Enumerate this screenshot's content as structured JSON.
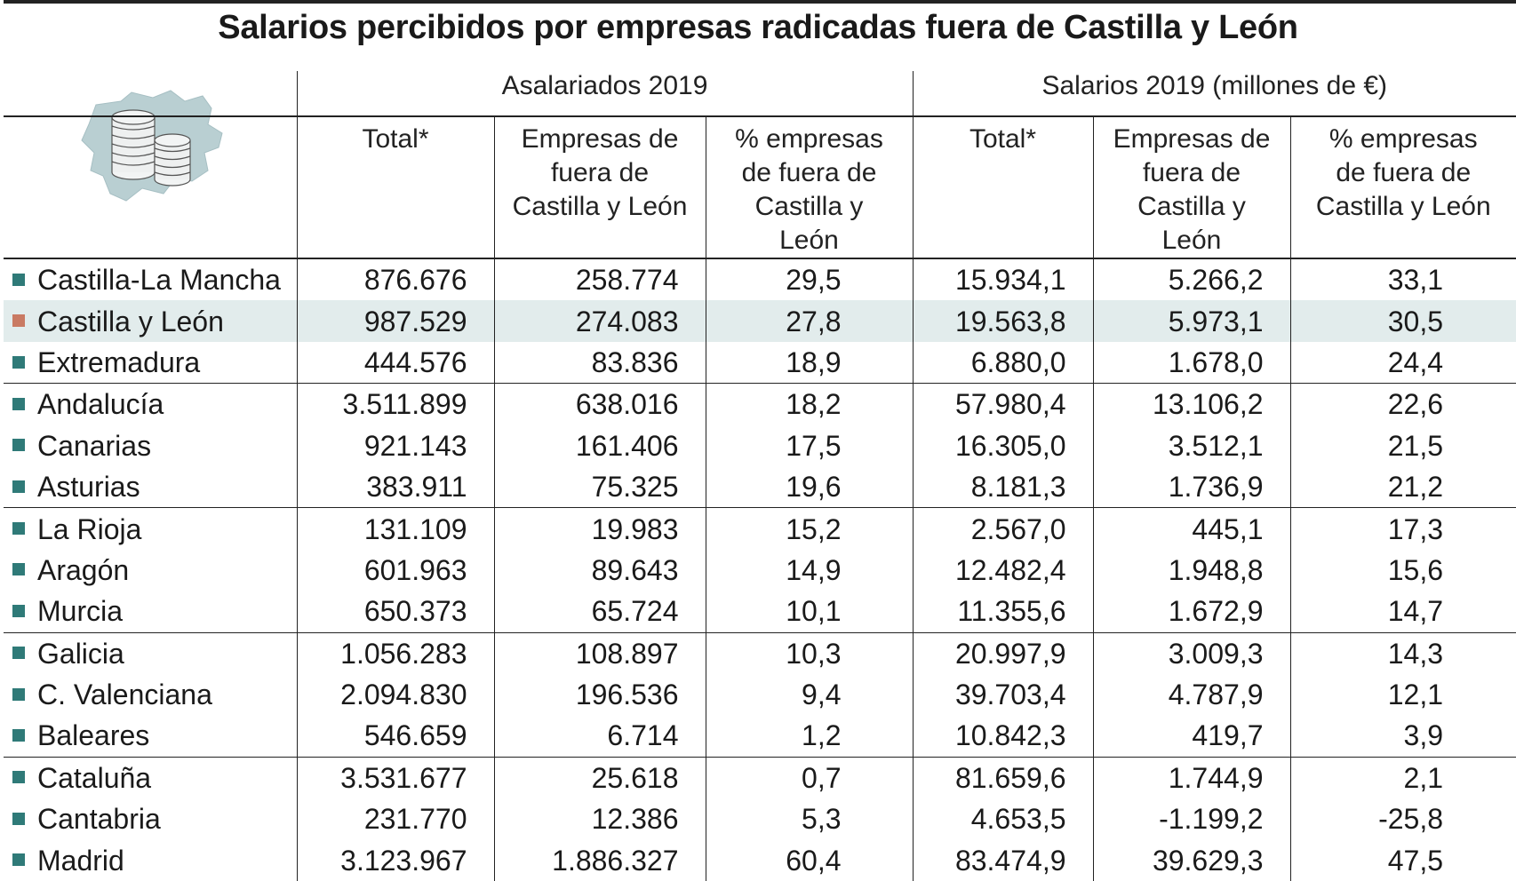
{
  "title": "Salarios percibidos por empresas radicadas fuera de Castilla y León",
  "headers": {
    "group1": "Asalariados 2019",
    "group2": "Salarios 2019 (millones de €)",
    "total": "Total*",
    "empresas_fuera": "Empresas de fuera de Castilla y León",
    "pct_fuera": "% empresas de fuera de Castilla y León"
  },
  "colors": {
    "marker": "#2f7a78",
    "marker_highlight": "#c97a63",
    "highlight_row": "#e2ecec",
    "map": "#b9cfd2"
  },
  "chart_data": {
    "type": "table",
    "title": "Salarios percibidos por empresas radicadas fuera de Castilla y León",
    "columns": [
      "",
      "Total*",
      "Empresas de fuera de Castilla y León",
      "% empresas de fuera de Castilla y León",
      "Total*",
      "Empresas de fuera de Castilla y León",
      "% empresas de fuera de Castilla y León"
    ],
    "rows": [
      {
        "region": "Castilla-La Mancha",
        "asal_total": "876.676",
        "asal_fuera": "258.774",
        "asal_pct": "29,5",
        "sal_total": "15.934,1",
        "sal_fuera": "5.266,2",
        "sal_pct": "33,1"
      },
      {
        "region": "Castilla y León",
        "asal_total": "987.529",
        "asal_fuera": "274.083",
        "asal_pct": "27,8",
        "sal_total": "19.563,8",
        "sal_fuera": "5.973,1",
        "sal_pct": "30,5",
        "highlight": true
      },
      {
        "region": "Extremadura",
        "asal_total": "444.576",
        "asal_fuera": "83.836",
        "asal_pct": "18,9",
        "sal_total": "6.880,0",
        "sal_fuera": "1.678,0",
        "sal_pct": "24,4",
        "sep": true
      },
      {
        "region": "Andalucía",
        "asal_total": "3.511.899",
        "asal_fuera": "638.016",
        "asal_pct": "18,2",
        "sal_total": "57.980,4",
        "sal_fuera": "13.106,2",
        "sal_pct": "22,6"
      },
      {
        "region": "Canarias",
        "asal_total": "921.143",
        "asal_fuera": "161.406",
        "asal_pct": "17,5",
        "sal_total": "16.305,0",
        "sal_fuera": "3.512,1",
        "sal_pct": "21,5"
      },
      {
        "region": "Asturias",
        "asal_total": "383.911",
        "asal_fuera": "75.325",
        "asal_pct": "19,6",
        "sal_total": "8.181,3",
        "sal_fuera": "1.736,9",
        "sal_pct": "21,2",
        "sep": true
      },
      {
        "region": "La Rioja",
        "asal_total": "131.109",
        "asal_fuera": "19.983",
        "asal_pct": "15,2",
        "sal_total": "2.567,0",
        "sal_fuera": "445,1",
        "sal_pct": "17,3"
      },
      {
        "region": "Aragón",
        "asal_total": "601.963",
        "asal_fuera": "89.643",
        "asal_pct": "14,9",
        "sal_total": "12.482,4",
        "sal_fuera": "1.948,8",
        "sal_pct": "15,6"
      },
      {
        "region": "Murcia",
        "asal_total": "650.373",
        "asal_fuera": "65.724",
        "asal_pct": "10,1",
        "sal_total": "11.355,6",
        "sal_fuera": "1.672,9",
        "sal_pct": "14,7",
        "sep": true
      },
      {
        "region": "Galicia",
        "asal_total": "1.056.283",
        "asal_fuera": "108.897",
        "asal_pct": "10,3",
        "sal_total": "20.997,9",
        "sal_fuera": "3.009,3",
        "sal_pct": "14,3"
      },
      {
        "region": "C. Valenciana",
        "asal_total": "2.094.830",
        "asal_fuera": "196.536",
        "asal_pct": "9,4",
        "sal_total": "39.703,4",
        "sal_fuera": "4.787,9",
        "sal_pct": "12,1"
      },
      {
        "region": "Baleares",
        "asal_total": "546.659",
        "asal_fuera": "6.714",
        "asal_pct": "1,2",
        "sal_total": "10.842,3",
        "sal_fuera": "419,7",
        "sal_pct": "3,9",
        "sep": true
      },
      {
        "region": "Cataluña",
        "asal_total": "3.531.677",
        "asal_fuera": "25.618",
        "asal_pct": "0,7",
        "sal_total": "81.659,6",
        "sal_fuera": "1.744,9",
        "sal_pct": "2,1"
      },
      {
        "region": "Cantabria",
        "asal_total": "231.770",
        "asal_fuera": "12.386",
        "asal_pct": "5,3",
        "sal_total": "4.653,5",
        "sal_fuera": "-1.199,2",
        "sal_pct": "-25,8"
      },
      {
        "region": "Madrid",
        "asal_total": "3.123.967",
        "asal_fuera": "1.886.327",
        "asal_pct": "60,4",
        "sal_total": "83.474,9",
        "sal_fuera": "39.629,3",
        "sal_pct": "47,5"
      }
    ]
  }
}
